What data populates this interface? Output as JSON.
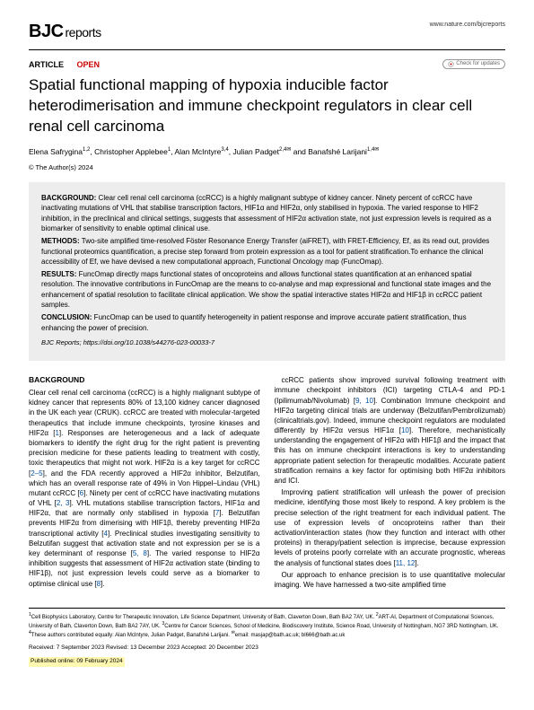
{
  "header": {
    "logo_main": "BJC",
    "logo_sub": "reports",
    "url": "www.nature.com/bjcreports"
  },
  "article_meta": {
    "type": "ARTICLE",
    "open_label": "OPEN",
    "updates_label": "Check for updates"
  },
  "title": "Spatial functional mapping of hypoxia inducible factor heterodimerisation and immune checkpoint regulators in clear cell renal cell carcinoma",
  "authors_html": "Elena Safrygina<sup>1,2</sup>, Christopher Applebee<sup>1</sup>, Alan McIntyre<sup>3,4</sup>, Julian Padget<sup>2,4✉</sup> and Banafshé Larijani<sup>1,4✉</sup>",
  "copyright": "© The Author(s) 2024",
  "abstract": {
    "background_label": "BACKGROUND:",
    "background": " Clear cell renal cell carcinoma (ccRCC) is a highly malignant subtype of kidney cancer. Ninety percent of ccRCC have inactivating mutations of VHL that stabilise transcription factors, HIF1α and HIF2α, only stabilised in hypoxia. The varied response to HIF2 inhibition, in the preclinical and clinical settings, suggests that assessment of HIF2α activation state, not just expression levels is required as a biomarker of sensitivity to enable optimal clinical use.",
    "methods_label": "METHODS:",
    "methods": " Two-site amplified time-resolved Föster Resonance Energy Transfer (aiFRET), with FRET-Efficiency, Ef, as its read out, provides functional proteomics quantification, a precise step forward from protein expression as a tool for patient stratification.To enhance the clinical accessibility of Ef, we have devised a new computational approach, Functional Oncology map (FuncOmap).",
    "results_label": "RESULTS:",
    "results": " FuncOmap directly maps functional states of oncoproteins and allows functional states quantification at an enhanced spatial resolution. The innovative contributions in FuncOmap are the means to co-analyse and map expressional and functional state images and the enhancement of spatial resolution to facilitate clinical application. We show the spatial interactive states HIF2α and HIF1β in ccRCC patient samples.",
    "conclusion_label": "CONCLUSION:",
    "conclusion": " FuncOmap can be used to quantify heterogeneity in patient response and improve accurate patient stratification, thus enhancing the power of precision.",
    "journal_line": "BJC Reports;",
    "doi": " https://doi.org/10.1038/s44276-023-00033-7"
  },
  "body": {
    "heading": "BACKGROUND",
    "col1_p1": "Clear cell renal cell carcinoma (ccRCC) is a highly malignant subtype of kidney cancer that represents 80% of 13,100 kidney cancer diagnosed in the UK each year (CRUK). ccRCC are treated with molecular-targeted therapeutics that include immune checkpoints, tyrosine kinases and HIF2α [1]. Responses are heterogeneous and a lack of adequate biomarkers to identify the right drug for the right patient is preventing precision medicine for these patients leading to treatment with costly, toxic therapeutics that might not work. HIF2α is a key target for ccRCC [2–5], and the FDA recently approved a HIF2α inhibitor, Belzutifan, which has an overall response rate of 49% in Von Hippel–Lindau (VHL) mutant ccRCC [6]. Ninety per cent of ccRCC have inactivating mutations of VHL [2, 3]. VHL mutations stabilise transcription factors, HIF1α and HIF2α, that are normally only stabilised in hypoxia [7]. Belzutifan prevents HIF2α from dimerising with HIF1β, thereby preventing HIF2α transcriptional activity [4]. Preclinical studies investigating sensitivity to Belzutifan suggest that activation state and not expression per se is a key determinant of response [5, 8]. The varied response to HIF2α inhibition suggests that assessment of HIF2α activation state (binding to HIF1β), not just expression levels could serve as a biomarker to optimise clinical use [8].",
    "col2_p1": "ccRCC patients show improved survival following treatment with immune checkpoint inhibitors (ICI) targeting CTLA-4 and PD-1 (Ipilimumab/Nivolumab) [9, 10]. Combination Immune checkpoint and HIF2α targeting clinical trials are underway (Belzutifan/Pembrolizumab) (clinicaltrials.gov). Indeed, immune checkpoint regulators are modulated differently by HIF2α versus HIF1α [10]. Therefore, mechanistically understanding the engagement of HIF2α with HIF1β and the impact that this has on immune checkpoint interactions is key to understanding appropriate patient selection for therapeutic modalities. Accurate patient stratification remains a key factor for optimising both HIF2α inhibitors and ICI.",
    "col2_p2": "Improving patient stratification will unleash the power of precision medicine, identifying those most likely to respond. A key problem is the precise selection of the right treatment for each individual patient. The use of expression levels of oncoproteins rather than their activation/interaction states (how they function and interact with other proteins) in therapy/patient selection is imprecise, because expression levels of proteins poorly correlate with an accurate prognostic, whereas the analysis of functional states does [11, 12].",
    "col2_p3": "Our approach to enhance precision is to use quantitative molecular imaging. We have harnessed a two-site amplified time"
  },
  "footer": {
    "affiliations": "<sup>1</sup>Cell Biophysics Laboratory, Centre for Therapeutic Innovation, Life Science Department, University of Bath, Claverton Down, Bath BA2 7AY, UK. <sup>2</sup>ART-AI, Department of Computational Sciences, University of Bath, Claverton Down, Bath BA2 7AY, UK. <sup>3</sup>Centre for Cancer Sciences, School of Medicine, Biodiscovery Institute, Science Road, University of Nottingham, NG7 3RD Nottingham, UK. <sup>4</sup>These authors contributed equally: Alan McIntyre, Julian Padget, Banafshé Larijani. <sup>✉</sup>email: masjap@bath.ac.uk; bl666@bath.ac.uk",
    "dates": "Received: 7 September 2023  Revised: 13 December 2023  Accepted: 20 December 2023",
    "online": "Published online: 09 February 2024"
  },
  "colors": {
    "open_red": "#c00",
    "link_blue": "#0051a3",
    "abstract_bg": "#ededed",
    "highlight": "#fff8b0"
  }
}
